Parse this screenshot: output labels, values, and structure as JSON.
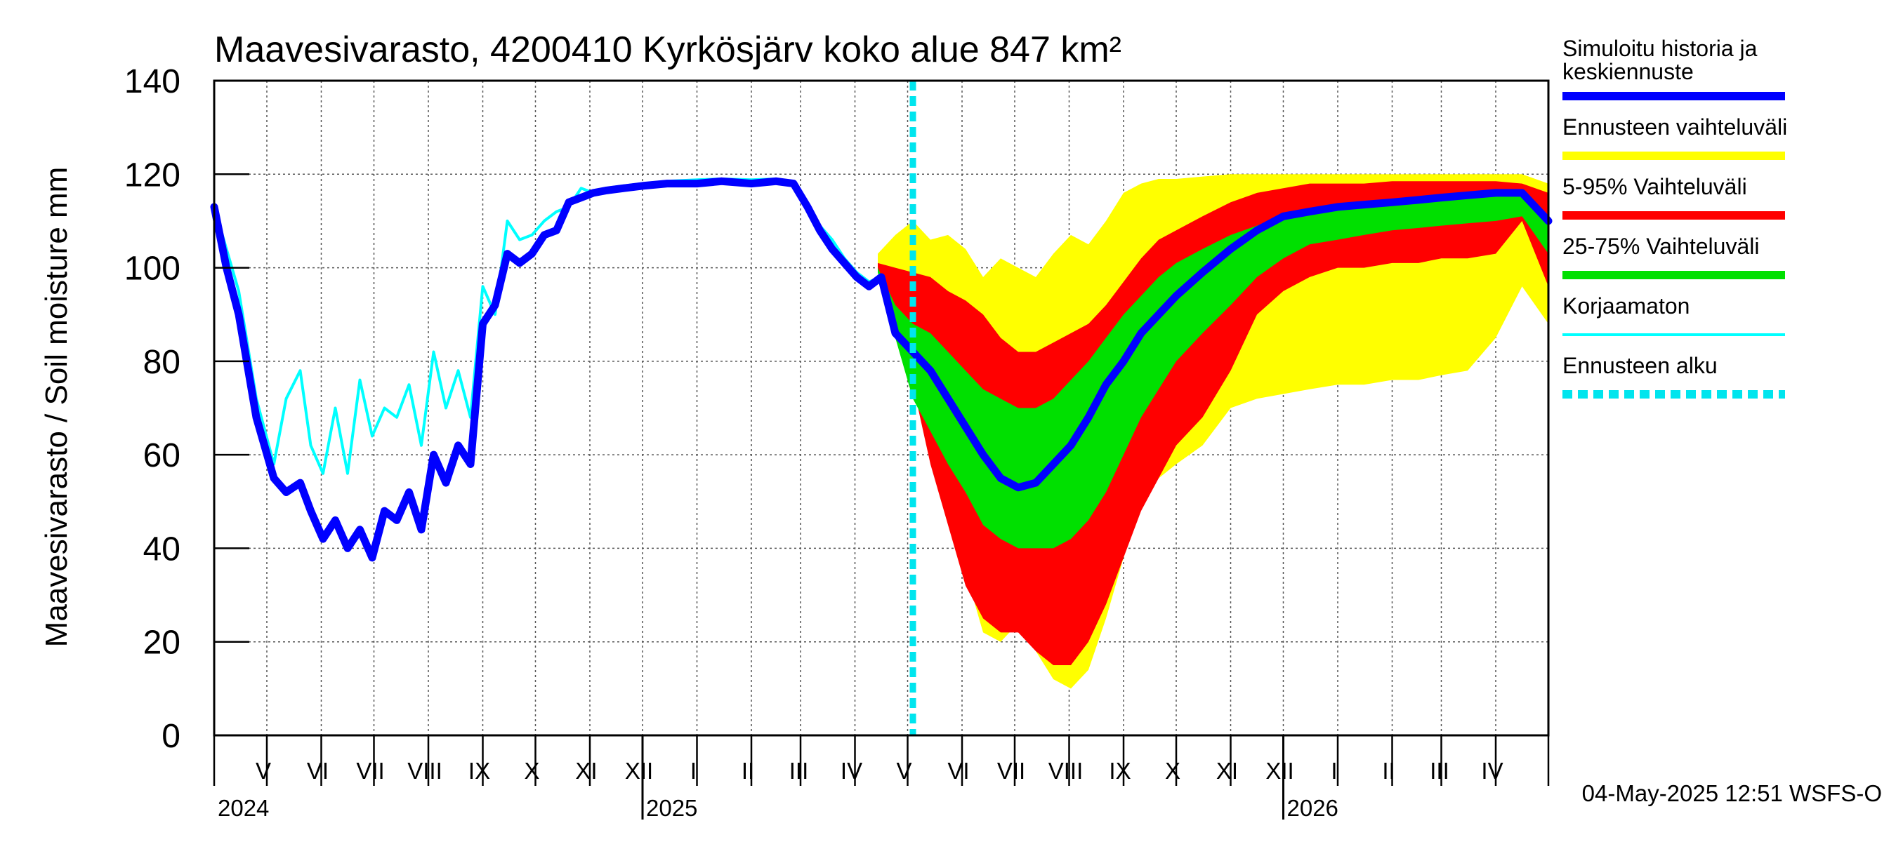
{
  "chart_data": {
    "type": "area",
    "title": "Maavesivarasto, 4200410 Kyrkösjärv koko alue 847 km²",
    "ylabel": "Maavesivarasto / Soil moisture   mm",
    "ylim": [
      0,
      140
    ],
    "yticks": [
      0,
      20,
      40,
      60,
      80,
      100,
      120,
      140
    ],
    "grid": true,
    "x_start": "2024-04-01",
    "x_end": "2026-05-01",
    "forecast_start": "2025-05-04",
    "month_labels": [
      {
        "date": "2024-04-15",
        "label": "V"
      },
      {
        "date": "2024-05-16",
        "label": "VI"
      },
      {
        "date": "2024-06-15",
        "label": "VII"
      },
      {
        "date": "2024-07-16",
        "label": "VIII"
      },
      {
        "date": "2024-08-16",
        "label": "IX"
      },
      {
        "date": "2024-09-15",
        "label": "X"
      },
      {
        "date": "2024-10-16",
        "label": "XI"
      },
      {
        "date": "2024-11-15",
        "label": "XII"
      },
      {
        "date": "2024-12-16",
        "label": "I"
      },
      {
        "date": "2025-01-16",
        "label": "II"
      },
      {
        "date": "2025-02-14",
        "label": "III"
      },
      {
        "date": "2025-03-16",
        "label": "IV"
      },
      {
        "date": "2025-04-15",
        "label": "V"
      },
      {
        "date": "2025-05-16",
        "label": "VI"
      },
      {
        "date": "2025-06-15",
        "label": "VII"
      },
      {
        "date": "2025-07-16",
        "label": "VIII"
      },
      {
        "date": "2025-08-16",
        "label": "IX"
      },
      {
        "date": "2025-09-15",
        "label": "X"
      },
      {
        "date": "2025-10-16",
        "label": "XI"
      },
      {
        "date": "2025-11-15",
        "label": "XII"
      },
      {
        "date": "2025-12-16",
        "label": "I"
      },
      {
        "date": "2026-01-16",
        "label": "II"
      },
      {
        "date": "2026-02-14",
        "label": "III"
      },
      {
        "date": "2026-03-16",
        "label": "IV"
      }
    ],
    "year_labels": [
      {
        "date": "2024-04-01",
        "label": "2024"
      },
      {
        "date": "2024-12-01",
        "label": "2025"
      },
      {
        "date": "2025-12-01",
        "label": "2026"
      }
    ],
    "bands": [
      {
        "name": "Ennusteen vaihteluväli",
        "color": "#ffff00",
        "x": [
          "2025-04-14",
          "2025-04-24",
          "2025-05-04",
          "2025-05-14",
          "2025-05-24",
          "2025-06-03",
          "2025-06-13",
          "2025-06-23",
          "2025-07-03",
          "2025-07-13",
          "2025-07-23",
          "2025-08-02",
          "2025-08-12",
          "2025-08-22",
          "2025-09-01",
          "2025-09-11",
          "2025-09-21",
          "2025-10-01",
          "2025-10-16",
          "2025-11-01",
          "2025-11-16",
          "2025-12-01",
          "2025-12-16",
          "2026-01-01",
          "2026-01-16",
          "2026-02-01",
          "2026-02-16",
          "2026-03-01",
          "2026-03-16",
          "2026-04-01",
          "2026-04-16",
          "2026-05-01"
        ],
        "upper": [
          103,
          107,
          110,
          106,
          107,
          104,
          98,
          102,
          100,
          98,
          103,
          107,
          105,
          110,
          116,
          118,
          119,
          119,
          119.5,
          120,
          120,
          120,
          120,
          120,
          120,
          120,
          120,
          120,
          120,
          120,
          120,
          118
        ],
        "lower": [
          100,
          92,
          80,
          62,
          48,
          35,
          22,
          20,
          24,
          18,
          12,
          10,
          14,
          25,
          38,
          50,
          55,
          58,
          62,
          70,
          72,
          73,
          74,
          75,
          75,
          76,
          76,
          77,
          78,
          85,
          96,
          88
        ]
      },
      {
        "name": "5-95% Vaihteluväli",
        "color": "#ff0000",
        "x": [
          "2025-04-14",
          "2025-04-24",
          "2025-05-04",
          "2025-05-14",
          "2025-05-24",
          "2025-06-03",
          "2025-06-13",
          "2025-06-23",
          "2025-07-03",
          "2025-07-13",
          "2025-07-23",
          "2025-08-02",
          "2025-08-12",
          "2025-08-22",
          "2025-09-01",
          "2025-09-11",
          "2025-09-21",
          "2025-10-01",
          "2025-10-16",
          "2025-11-01",
          "2025-11-16",
          "2025-12-01",
          "2025-12-16",
          "2026-01-01",
          "2026-01-16",
          "2026-02-01",
          "2026-02-16",
          "2026-03-01",
          "2026-03-16",
          "2026-04-01",
          "2026-04-16",
          "2026-05-01"
        ],
        "upper": [
          101,
          100,
          99,
          98,
          95,
          93,
          90,
          85,
          82,
          82,
          84,
          86,
          88,
          92,
          97,
          102,
          106,
          108,
          111,
          114,
          116,
          117,
          118,
          118,
          118,
          118.5,
          118.5,
          118.5,
          118.5,
          118.5,
          118,
          116
        ],
        "lower": [
          100,
          88,
          75,
          58,
          45,
          32,
          25,
          22,
          22,
          18,
          15,
          15,
          20,
          28,
          38,
          48,
          55,
          62,
          68,
          78,
          90,
          95,
          98,
          100,
          100,
          101,
          101,
          102,
          102,
          103,
          110,
          96
        ]
      },
      {
        "name": "25-75% Vaihteluväli",
        "color": "#00e000",
        "x": [
          "2025-04-14",
          "2025-04-24",
          "2025-05-04",
          "2025-05-14",
          "2025-05-24",
          "2025-06-03",
          "2025-06-13",
          "2025-06-23",
          "2025-07-03",
          "2025-07-13",
          "2025-07-23",
          "2025-08-02",
          "2025-08-12",
          "2025-08-22",
          "2025-09-01",
          "2025-09-11",
          "2025-09-21",
          "2025-10-01",
          "2025-10-16",
          "2025-11-01",
          "2025-11-16",
          "2025-12-01",
          "2025-12-16",
          "2026-01-01",
          "2026-01-16",
          "2026-02-01",
          "2026-02-16",
          "2026-03-01",
          "2026-03-16",
          "2026-04-01",
          "2026-04-16",
          "2026-05-01"
        ],
        "upper": [
          100,
          92,
          88,
          86,
          82,
          78,
          74,
          72,
          70,
          70,
          72,
          76,
          80,
          85,
          90,
          94,
          98,
          101,
          104,
          107,
          109,
          111,
          112,
          113,
          114,
          114.5,
          115,
          115,
          115.5,
          116,
          116,
          110
        ],
        "lower": [
          99,
          85,
          72,
          65,
          58,
          52,
          45,
          42,
          40,
          40,
          40,
          42,
          46,
          52,
          60,
          68,
          74,
          80,
          86,
          92,
          98,
          102,
          105,
          106,
          107,
          108,
          108.5,
          109,
          109.5,
          110,
          111,
          103
        ]
      }
    ],
    "series": [
      {
        "name": "Korjaamaton",
        "color": "#00ffff",
        "x": [
          "2024-04-01",
          "2024-04-08",
          "2024-04-15",
          "2024-04-25",
          "2024-05-05",
          "2024-05-12",
          "2024-05-20",
          "2024-05-26",
          "2024-06-02",
          "2024-06-09",
          "2024-06-16",
          "2024-06-23",
          "2024-06-30",
          "2024-07-07",
          "2024-07-14",
          "2024-07-21",
          "2024-07-28",
          "2024-08-04",
          "2024-08-11",
          "2024-08-18",
          "2024-08-25",
          "2024-09-01",
          "2024-09-08",
          "2024-09-15",
          "2024-09-22",
          "2024-09-29",
          "2024-10-06",
          "2024-10-13",
          "2024-10-20",
          "2024-10-27",
          "2024-11-03",
          "2024-11-10",
          "2024-11-20",
          "2024-12-01",
          "2024-12-15",
          "2025-01-01",
          "2025-01-15",
          "2025-02-01",
          "2025-02-15",
          "2025-02-25",
          "2025-03-05",
          "2025-03-12",
          "2025-03-19",
          "2025-03-26",
          "2025-04-02",
          "2025-04-09",
          "2025-04-16"
        ],
        "y": [
          113,
          104,
          95,
          72,
          58,
          72,
          78,
          62,
          56,
          70,
          56,
          76,
          64,
          70,
          68,
          75,
          62,
          82,
          70,
          78,
          68,
          96,
          90,
          110,
          106,
          107,
          110,
          112,
          113,
          117,
          116,
          117,
          117.5,
          118,
          118.5,
          118.8,
          119,
          118.8,
          119,
          118,
          113,
          109,
          106,
          102,
          99,
          97,
          98
        ]
      },
      {
        "name": "Simuloitu historia ja keskiennuste",
        "color": "#0000ff",
        "x": [
          "2024-04-01",
          "2024-04-08",
          "2024-04-15",
          "2024-04-25",
          "2024-05-05",
          "2024-05-12",
          "2024-05-20",
          "2024-05-26",
          "2024-06-02",
          "2024-06-09",
          "2024-06-16",
          "2024-06-23",
          "2024-06-30",
          "2024-07-07",
          "2024-07-14",
          "2024-07-21",
          "2024-07-28",
          "2024-08-04",
          "2024-08-11",
          "2024-08-18",
          "2024-08-25",
          "2024-09-01",
          "2024-09-08",
          "2024-09-15",
          "2024-09-22",
          "2024-09-29",
          "2024-10-06",
          "2024-10-13",
          "2024-10-20",
          "2024-10-27",
          "2024-11-03",
          "2024-11-10",
          "2024-11-20",
          "2024-12-01",
          "2024-12-15",
          "2025-01-01",
          "2025-01-15",
          "2025-02-01",
          "2025-02-15",
          "2025-02-25",
          "2025-03-05",
          "2025-03-12",
          "2025-03-19",
          "2025-03-26",
          "2025-04-02",
          "2025-04-09",
          "2025-04-16",
          "2025-04-24",
          "2025-05-04",
          "2025-05-14",
          "2025-05-24",
          "2025-06-03",
          "2025-06-13",
          "2025-06-23",
          "2025-07-03",
          "2025-07-13",
          "2025-07-23",
          "2025-08-02",
          "2025-08-12",
          "2025-08-22",
          "2025-09-01",
          "2025-09-11",
          "2025-09-21",
          "2025-10-01",
          "2025-10-16",
          "2025-11-01",
          "2025-11-16",
          "2025-12-01",
          "2025-12-16",
          "2026-01-01",
          "2026-01-16",
          "2026-02-01",
          "2026-02-16",
          "2026-03-01",
          "2026-03-16",
          "2026-04-01",
          "2026-04-16",
          "2026-05-01"
        ],
        "y": [
          113,
          100,
          90,
          68,
          55,
          52,
          54,
          48,
          42,
          46,
          40,
          44,
          38,
          48,
          46,
          52,
          44,
          60,
          54,
          62,
          58,
          88,
          92,
          103,
          101,
          103,
          107,
          108,
          114,
          115,
          116,
          116.5,
          117,
          117.5,
          118,
          118,
          118.5,
          118,
          118.5,
          118,
          113,
          108,
          104,
          101,
          98,
          96,
          98,
          86,
          82,
          78,
          72,
          66,
          60,
          55,
          53,
          54,
          58,
          62,
          68,
          75,
          80,
          86,
          90,
          94,
          99,
          104,
          108,
          111,
          112,
          113,
          113.5,
          114,
          114.5,
          115,
          115.5,
          116,
          116,
          110
        ]
      }
    ],
    "vline": {
      "name": "Ennusteen alku",
      "date": "2025-05-04",
      "color": "#00e5ee"
    },
    "legend": {
      "position": "right",
      "entries": [
        {
          "label": "Simuloitu historia ja",
          "label2": "keskiennuste",
          "color": "#0000ff",
          "style": "solid"
        },
        {
          "label": "Ennusteen vaihteluväli",
          "label2": "",
          "color": "#ffff00",
          "style": "solid"
        },
        {
          "label": "5-95% Vaihteluväli",
          "label2": "",
          "color": "#ff0000",
          "style": "solid"
        },
        {
          "label": "25-75% Vaihteluväli",
          "label2": "",
          "color": "#00e000",
          "style": "solid"
        },
        {
          "label": "Korjaamaton",
          "label2": "",
          "color": "#00ffff",
          "style": "thin"
        },
        {
          "label": "Ennusteen alku",
          "label2": "",
          "color": "#00e5ee",
          "style": "dashed"
        }
      ]
    },
    "footer": "04-May-2025 12:51 WSFS-O"
  }
}
